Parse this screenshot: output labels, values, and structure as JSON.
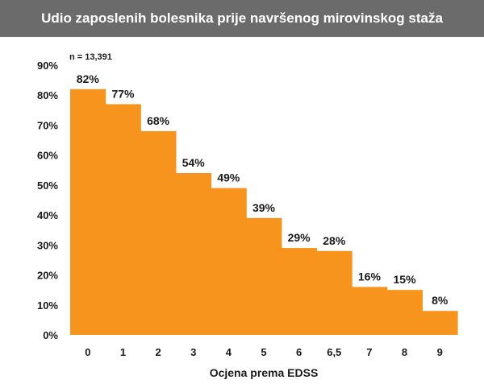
{
  "colors": {
    "title_bar": "#6b6b6b",
    "bar_fill": "#f7941d",
    "background": "#ffffff",
    "text": "#1a1a1a"
  },
  "chart_data": {
    "type": "bar",
    "title": "Udio zaposlenih bolesnika prije navršenog mirovinskog staža",
    "note": "n = 13,391",
    "xlabel": "Ocjena prema EDSS",
    "ylabel": "",
    "categories": [
      "0",
      "1",
      "2",
      "3",
      "4",
      "5",
      "6",
      "6,5",
      "7",
      "8",
      "9"
    ],
    "values": [
      82,
      77,
      68,
      54,
      49,
      39,
      29,
      28,
      16,
      15,
      8
    ],
    "data_labels": [
      "82%",
      "77%",
      "68%",
      "54%",
      "49%",
      "39%",
      "29%",
      "28%",
      "16%",
      "15%",
      "8%"
    ],
    "ylim": [
      0,
      90
    ],
    "yticks": [
      0,
      10,
      20,
      30,
      40,
      50,
      60,
      70,
      80,
      90
    ],
    "ytick_labels": [
      "0%",
      "10%",
      "20%",
      "30%",
      "40%",
      "50%",
      "60%",
      "70%",
      "80%",
      "90%"
    ],
    "grid": false,
    "legend": "none"
  }
}
